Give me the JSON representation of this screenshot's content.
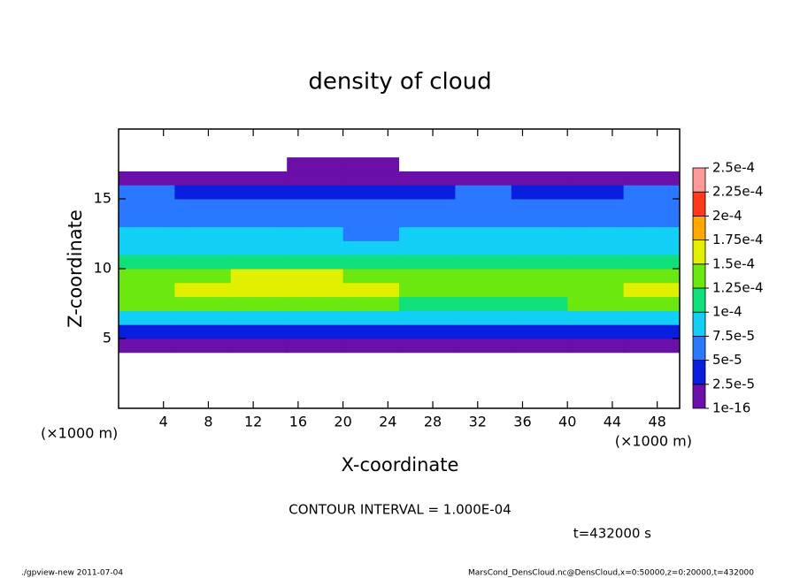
{
  "chart_data": {
    "type": "heatmap",
    "title": "density of cloud",
    "x_label": "X-coordinate",
    "y_label": "Z-coordinate",
    "x_unit": "(×1000 m)",
    "y_unit": "(×1000 m)",
    "contour_note": "CONTOUR INTERVAL = 1.000E-04",
    "time_note": "t=432000 s",
    "footer_left": "./gpview-new  2011-07-04",
    "footer_right": "MarsCond_DensCloud.nc@DensCloud,x=0:50000,z=0:20000,t=432000",
    "xlim": [
      0,
      50
    ],
    "ylim": [
      0,
      20
    ],
    "xticks": [
      4,
      8,
      12,
      16,
      20,
      24,
      28,
      32,
      36,
      40,
      44,
      48
    ],
    "yticks": [
      5,
      10,
      15
    ],
    "levels": [
      {
        "value": 1e-16,
        "label": "1e-16"
      },
      {
        "value": 2.5e-05,
        "label": "2.5e-5"
      },
      {
        "value": 5e-05,
        "label": "5e-5"
      },
      {
        "value": 7.5e-05,
        "label": "7.5e-5"
      },
      {
        "value": 0.0001,
        "label": "1e-4"
      },
      {
        "value": 0.000125,
        "label": "1.25e-4"
      },
      {
        "value": 0.00015,
        "label": "1.5e-4"
      },
      {
        "value": 0.000175,
        "label": "1.75e-4"
      },
      {
        "value": 0.0002,
        "label": "2e-4"
      },
      {
        "value": 0.000225,
        "label": "2.25e-4"
      },
      {
        "value": 0.00025,
        "label": "2.5e-4"
      }
    ],
    "colors": [
      "#6a0fa8",
      "#0a1ee0",
      "#2a78ff",
      "#12d0f5",
      "#10e07a",
      "#6ae810",
      "#e0f000",
      "#ffa800",
      "#ff3a1a",
      "#ff9a9a"
    ],
    "field": [
      [
        0,
        0,
        0,
        0,
        0,
        0,
        0,
        0,
        0,
        0
      ],
      [
        0,
        0,
        0,
        0,
        0,
        0,
        0,
        0,
        0,
        0
      ],
      [
        0,
        0,
        0,
        0,
        0,
        0,
        0,
        0,
        0,
        0
      ],
      [
        0,
        0,
        0,
        0,
        0,
        0,
        0,
        0,
        0,
        0
      ],
      [
        1e-05,
        1e-05,
        1e-05,
        1e-05,
        1e-05,
        1e-05,
        1e-05,
        1e-05,
        1e-05,
        1e-05
      ],
      [
        4e-05,
        4e-05,
        4e-05,
        4e-05,
        4e-05,
        4e-05,
        4e-05,
        4e-05,
        4e-05,
        4e-05
      ],
      [
        9e-05,
        9e-05,
        9e-05,
        9e-05,
        9e-05,
        8e-05,
        8e-05,
        8e-05,
        9e-05,
        9e-05
      ],
      [
        0.00013,
        0.00013,
        0.00014,
        0.00014,
        0.00013,
        0.00012,
        0.00012,
        0.00012,
        0.00013,
        0.00013
      ],
      [
        0.00014,
        0.00015,
        0.00016,
        0.00017,
        0.00016,
        0.00014,
        0.00013,
        0.00013,
        0.00014,
        0.00015
      ],
      [
        0.00013,
        0.00014,
        0.00015,
        0.00015,
        0.00014,
        0.00013,
        0.00013,
        0.00013,
        0.00013,
        0.00013
      ],
      [
        0.00011,
        0.00012,
        0.00012,
        0.00011,
        0.00011,
        0.00011,
        0.00011,
        0.00011,
        0.00011,
        0.00011
      ],
      [
        9e-05,
        9.5e-05,
        9e-05,
        8.5e-05,
        8.5e-05,
        9e-05,
        9e-05,
        9e-05,
        9e-05,
        9e-05
      ],
      [
        8e-05,
        8e-05,
        8e-05,
        7.5e-05,
        7e-05,
        7.5e-05,
        8e-05,
        8e-05,
        8e-05,
        8e-05
      ],
      [
        7e-05,
        7e-05,
        6.5e-05,
        6e-05,
        6e-05,
        6.5e-05,
        7e-05,
        6.5e-05,
        6e-05,
        6.5e-05
      ],
      [
        6e-05,
        6e-05,
        5.5e-05,
        5.5e-05,
        5.5e-05,
        6e-05,
        6e-05,
        5.5e-05,
        5.5e-05,
        6e-05
      ],
      [
        5e-05,
        4.5e-05,
        4.5e-05,
        4.5e-05,
        4.5e-05,
        4.5e-05,
        5e-05,
        4.5e-05,
        4.5e-05,
        5e-05
      ],
      [
        1e-05,
        1e-05,
        1e-05,
        1e-05,
        1e-05,
        1e-05,
        1e-05,
        1e-05,
        1e-05,
        1e-05
      ],
      [
        0,
        0,
        0,
        5e-06,
        5e-06,
        0,
        0,
        0,
        0,
        0
      ],
      [
        0,
        0,
        0,
        0,
        0,
        0,
        0,
        0,
        0,
        0
      ],
      [
        0,
        0,
        0,
        0,
        0,
        0,
        0,
        0,
        0,
        0
      ]
    ]
  }
}
